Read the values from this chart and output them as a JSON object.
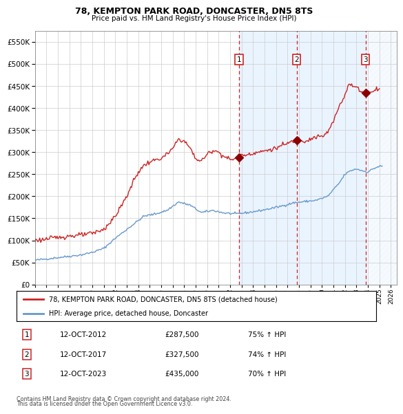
{
  "title": "78, KEMPTON PARK ROAD, DONCASTER, DN5 8TS",
  "subtitle": "Price paid vs. HM Land Registry's House Price Index (HPI)",
  "legend_line1": "78, KEMPTON PARK ROAD, DONCASTER, DN5 8TS (detached house)",
  "legend_line2": "HPI: Average price, detached house, Doncaster",
  "sale_points": [
    {
      "date_dec": 2012.789,
      "price": 287500,
      "label": "1"
    },
    {
      "date_dec": 2017.789,
      "price": 327500,
      "label": "2"
    },
    {
      "date_dec": 2023.789,
      "price": 435000,
      "label": "3"
    }
  ],
  "table_rows": [
    {
      "label": "1",
      "date": "12-OCT-2012",
      "price": "£287,500",
      "pct": "75% ↑ HPI"
    },
    {
      "label": "2",
      "date": "12-OCT-2017",
      "price": "£327,500",
      "pct": "74% ↑ HPI"
    },
    {
      "label": "3",
      "date": "12-OCT-2023",
      "price": "£435,000",
      "pct": "70% ↑ HPI"
    }
  ],
  "footer_line1": "Contains HM Land Registry data © Crown copyright and database right 2024.",
  "footer_line2": "This data is licensed under the Open Government Licence v3.0.",
  "hpi_color": "#6699cc",
  "price_color": "#cc2222",
  "marker_color": "#8b0000",
  "vline_color": "#cc2222",
  "shade_color": "#ddeeff",
  "bg_color": "#ffffff",
  "grid_color": "#cccccc",
  "ylim": [
    0,
    575000
  ],
  "yticks": [
    0,
    50000,
    100000,
    150000,
    200000,
    250000,
    300000,
    350000,
    400000,
    450000,
    500000,
    550000
  ],
  "xstart": 1995.0,
  "xend": 2026.5,
  "hpi_waypoints": {
    "1995.0": 55000,
    "1996.0": 58000,
    "1997.0": 61000,
    "1998.0": 64000,
    "1999.0": 67000,
    "2000.0": 73000,
    "2001.0": 82000,
    "2002.0": 105000,
    "2003.5": 135000,
    "2004.5": 155000,
    "2005.5": 160000,
    "2006.5": 168000,
    "2007.5": 187000,
    "2008.5": 180000,
    "2009.5": 163000,
    "2010.5": 168000,
    "2011.5": 162000,
    "2012.5": 160000,
    "2013.5": 163000,
    "2014.5": 167000,
    "2015.5": 172000,
    "2016.5": 178000,
    "2017.5": 185000,
    "2018.5": 188000,
    "2019.5": 191000,
    "2020.5": 200000,
    "2021.5": 230000,
    "2022.0": 250000,
    "2022.5": 258000,
    "2023.0": 262000,
    "2023.5": 258000,
    "2024.0": 255000,
    "2024.5": 263000,
    "2025.0": 268000
  },
  "idx_waypoints": {
    "1995.0": 100000,
    "1996.0": 103000,
    "1997.0": 107000,
    "1998.0": 110000,
    "1999.0": 112000,
    "2000.0": 116000,
    "2001.0": 125000,
    "2002.0": 155000,
    "2003.0": 200000,
    "2003.5": 230000,
    "2004.0": 255000,
    "2004.5": 270000,
    "2005.0": 278000,
    "2005.5": 282000,
    "2006.0": 286000,
    "2006.5": 295000,
    "2007.0": 308000,
    "2007.5": 330000,
    "2008.0": 325000,
    "2008.5": 310000,
    "2009.0": 285000,
    "2009.5": 280000,
    "2010.0": 295000,
    "2010.5": 305000,
    "2011.0": 300000,
    "2011.5": 290000,
    "2012.0": 283000,
    "2012.789": 287500,
    "2013.0": 293000,
    "2013.5": 295000,
    "2014.0": 298000,
    "2014.5": 300000,
    "2015.0": 303000,
    "2015.5": 306000,
    "2016.0": 309000,
    "2016.5": 315000,
    "2017.0": 320000,
    "2017.789": 327500,
    "2018.0": 330000,
    "2018.5": 325000,
    "2019.0": 330000,
    "2019.5": 335000,
    "2020.0": 335000,
    "2020.5": 345000,
    "2021.0": 370000,
    "2021.5": 405000,
    "2022.0": 430000,
    "2022.3": 455000,
    "2022.6": 450000,
    "2023.0": 448000,
    "2023.5": 435000,
    "2023.789": 435000,
    "2023.9": 428000,
    "2024.0": 432000,
    "2024.3": 438000,
    "2024.6": 442000,
    "2025.0": 445000
  }
}
